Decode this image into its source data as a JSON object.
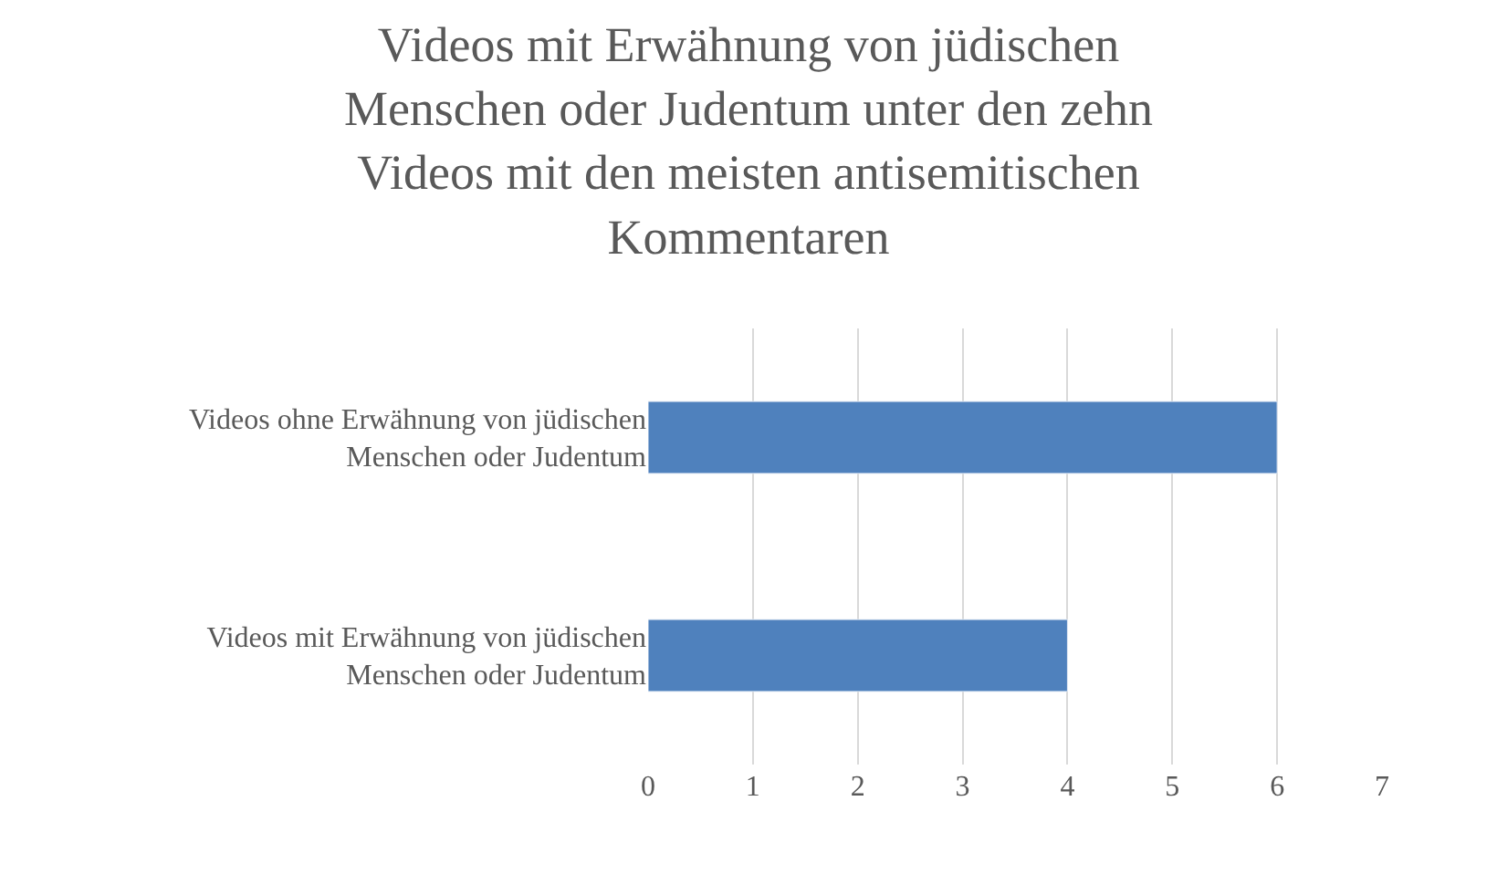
{
  "chart_data": {
    "type": "bar",
    "orientation": "horizontal",
    "title": "Videos mit Erwähnung von jüdischen Menschen oder Judentum unter den zehn Videos mit den meisten antisemitischen Kommentaren",
    "categories": [
      "Videos ohne Erwähnung von jüdischen Menschen oder Judentum",
      "Videos mit Erwähnung von jüdischen Menschen oder Judentum"
    ],
    "values": [
      6,
      4
    ],
    "color": "#4f81bd",
    "xlim": [
      0,
      7
    ],
    "xticks": [
      0,
      1,
      2,
      3,
      4,
      5,
      6,
      7
    ],
    "grid": "x"
  }
}
